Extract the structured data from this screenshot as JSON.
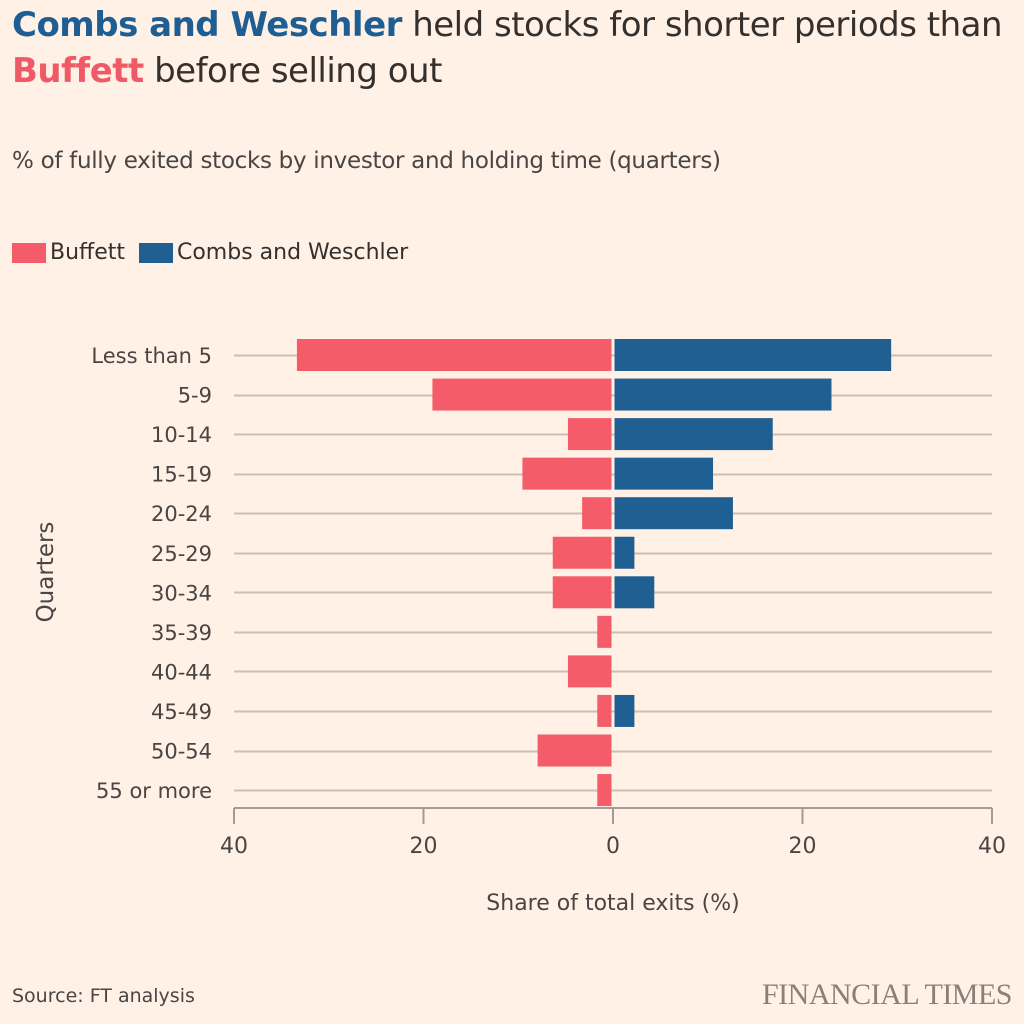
{
  "header": {
    "title_part1": "Combs and Weschler",
    "title_part2": " held stocks for shorter periods than ",
    "title_part3": "Buffett",
    "title_part4": " before selling out",
    "subtitle": "% of fully exited stocks by investor and holding time (quarters)"
  },
  "legend": [
    {
      "label": "Buffett",
      "color": "#f55c69"
    },
    {
      "label": "Combs and Weschler",
      "color": "#205f92"
    }
  ],
  "footer": {
    "source": "Source: FT analysis",
    "brand": "FINANCIAL TIMES"
  },
  "chart_data": {
    "type": "bar",
    "orientation": "horizontal-diverging",
    "title": "Combs and Weschler held stocks for shorter periods than Buffett before selling out",
    "subtitle": "% of fully exited stocks by investor and holding time (quarters)",
    "xlabel": "Share of total exits (%)",
    "ylabel": "Quarters",
    "xlim": [
      -40,
      40
    ],
    "xticks": [
      -40,
      -20,
      0,
      20,
      40
    ],
    "xtick_labels": [
      "40",
      "20",
      "0",
      "20",
      "40"
    ],
    "grid": true,
    "legend_position": "top-left",
    "categories": [
      "Less than 5",
      "5-9",
      "10-14",
      "15-19",
      "20-24",
      "25-29",
      "30-34",
      "35-39",
      "40-44",
      "45-49",
      "50-54",
      "55 or more"
    ],
    "series": [
      {
        "name": "Buffett",
        "side": "left",
        "color": "#f55c69",
        "values": [
          33.2,
          18.9,
          4.6,
          9.4,
          3.1,
          6.2,
          6.2,
          1.5,
          4.6,
          1.5,
          7.8,
          1.5
        ]
      },
      {
        "name": "Combs and Weschler",
        "side": "right",
        "color": "#205f92",
        "values": [
          29.2,
          22.9,
          16.7,
          10.4,
          12.5,
          2.1,
          4.2,
          0,
          0,
          2.1,
          0,
          0
        ]
      }
    ]
  }
}
